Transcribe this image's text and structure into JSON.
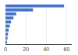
{
  "chart_data": {
    "type": "bar",
    "orientation": "horizontal",
    "categories": [
      null,
      null,
      null,
      null,
      null,
      null,
      null,
      null,
      null,
      null
    ],
    "values": [
      57.5,
      27.0,
      10.5,
      7.8,
      5.5,
      4.2,
      3.2,
      2.5,
      2.0,
      1.5
    ],
    "color": "#4472c4",
    "xlim": [
      0,
      65
    ],
    "xticks": [
      0,
      20,
      40,
      60
    ],
    "grid": true,
    "tick_labels": "x"
  }
}
